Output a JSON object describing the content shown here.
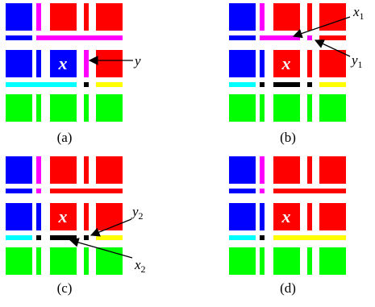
{
  "colors": {
    "blue": "#0000ff",
    "red": "#ff0000",
    "magenta": "#ff00ff",
    "cyan": "#00ffff",
    "yellow": "#ffff00",
    "green": "#00ff00",
    "black": "#000000",
    "background": "#ffffff"
  },
  "center_cell_label": "x",
  "panels": [
    {
      "label": "(a)",
      "annotations": [
        {
          "text": "y",
          "sub": ""
        }
      ]
    },
    {
      "label": "(b)",
      "annotations": [
        {
          "text": "x",
          "sub": "1"
        },
        {
          "text": "y",
          "sub": "1"
        }
      ]
    },
    {
      "label": "(c)",
      "annotations": [
        {
          "text": "y",
          "sub": "2"
        },
        {
          "text": "x",
          "sub": "2"
        }
      ]
    },
    {
      "label": "(d)",
      "annotations": []
    }
  ]
}
